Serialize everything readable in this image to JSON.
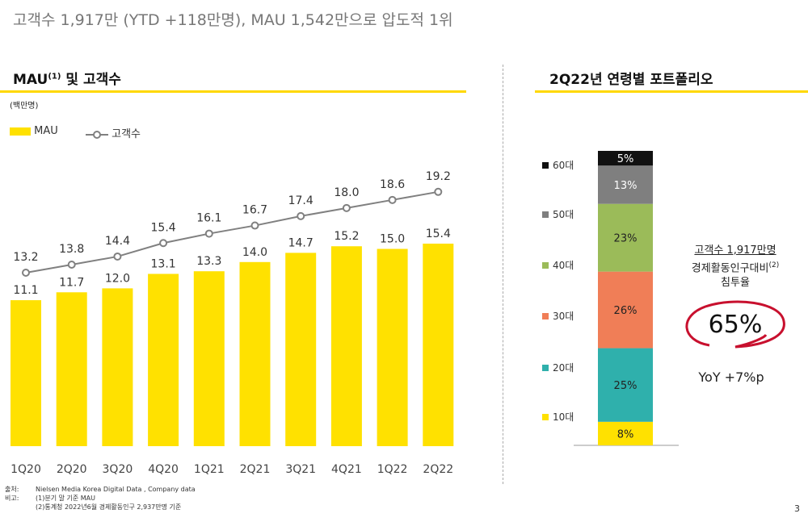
{
  "headline": "고객수 1,917만 (YTD +118만명), MAU 1,542만으로 압도적 1위",
  "left_section": {
    "title": "MAU",
    "title_sup": "(1)",
    "title_rest": " 및 고객수",
    "unit": "(백만명)"
  },
  "right_section": {
    "title": "2Q22년 연령별 포트폴리오"
  },
  "colors": {
    "accent": "#ffd800",
    "mau_bar": "#ffe100",
    "customer_line": "#808080",
    "ellipse": "#c8102e"
  },
  "chart_data": [
    {
      "type": "bar+line",
      "ylabel": "(백만명)",
      "categories": [
        "1Q20",
        "2Q20",
        "3Q20",
        "4Q20",
        "1Q21",
        "2Q21",
        "3Q21",
        "4Q21",
        "1Q22",
        "2Q22"
      ],
      "series": [
        {
          "name": "MAU",
          "type": "bar",
          "values": [
            11.1,
            11.7,
            12.0,
            13.1,
            13.3,
            14.0,
            14.7,
            15.2,
            15.0,
            15.4
          ]
        },
        {
          "name": "고객수",
          "type": "line",
          "values": [
            13.2,
            13.8,
            14.4,
            15.4,
            16.1,
            16.7,
            17.4,
            18.0,
            18.6,
            19.2
          ]
        }
      ],
      "legend": "top-left",
      "grid": false
    },
    {
      "type": "stacked-bar",
      "categories": [
        "10대",
        "20대",
        "30대",
        "40대",
        "50대",
        "60대"
      ],
      "values": [
        8,
        25,
        26,
        23,
        13,
        5
      ],
      "labels": [
        "8%",
        "25%",
        "26%",
        "23%",
        "13%",
        "5%"
      ],
      "colors": [
        "#ffe100",
        "#2fb0ac",
        "#f07e57",
        "#9bbb59",
        "#7f7f7f",
        "#111111"
      ],
      "legend": "left"
    }
  ],
  "callout": {
    "line1": "고객수 1,917만명",
    "line2": "경제활동인구대비",
    "line2_sup": "(2)",
    "line3": "침투율",
    "big_value": "65%",
    "yoy": "YoY +7%p"
  },
  "notes": {
    "source_label": "출처:",
    "source": "Nielsen Media Korea Digital Data , Company data",
    "remark_label": "비고:",
    "remark1": "(1)분기 말 기준 MAU",
    "remark2": "(2)통계청 2022년6월 경제활동인구 2,937만명 기준"
  },
  "page_number": "3"
}
